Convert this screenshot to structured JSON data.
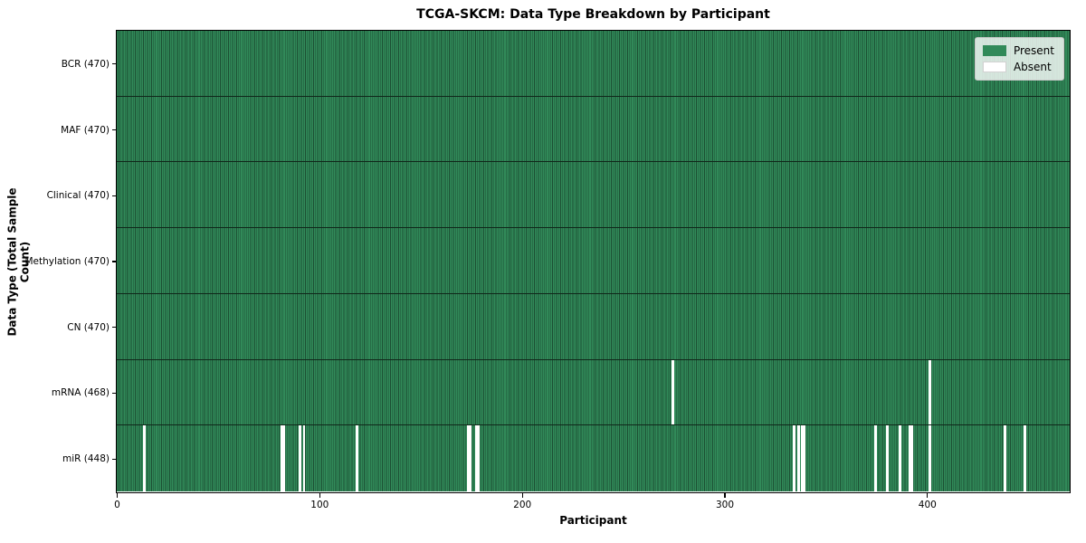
{
  "chart_data": {
    "type": "heatmap",
    "title": "TCGA-SKCM: Data Type Breakdown by Participant",
    "xlabel": "Participant",
    "ylabel": "Data Type (Total Sample Count)",
    "n_participants": 470,
    "x_ticks": [
      0,
      100,
      200,
      300,
      400
    ],
    "legend_position": "upper right",
    "grid": false,
    "legend": [
      {
        "label": "Present",
        "color": "#318a59"
      },
      {
        "label": "Absent",
        "color": "#ffffff"
      }
    ],
    "rows": [
      {
        "data_type": "BCR",
        "label": "BCR (470)",
        "present_count": 470,
        "absent_participants": []
      },
      {
        "data_type": "MAF",
        "label": "MAF (470)",
        "present_count": 470,
        "absent_participants": []
      },
      {
        "data_type": "Clinical",
        "label": "Clinical (470)",
        "present_count": 470,
        "absent_participants": []
      },
      {
        "data_type": "Methylation",
        "label": "Methylation (470)",
        "present_count": 470,
        "absent_participants": []
      },
      {
        "data_type": "CN",
        "label": "CN (470)",
        "present_count": 470,
        "absent_participants": []
      },
      {
        "data_type": "mRNA",
        "label": "mRNA (468)",
        "present_count": 468,
        "absent_participants": [
          274,
          401
        ]
      },
      {
        "data_type": "miR",
        "label": "miR (448)",
        "present_count": 448,
        "absent_participants": [
          13,
          81,
          82,
          90,
          92,
          118,
          173,
          174,
          177,
          178,
          334,
          336,
          338,
          339,
          374,
          380,
          386,
          391,
          392,
          401,
          438,
          448
        ]
      }
    ],
    "colors": {
      "present_fill": "#318a59",
      "cell_edge": "#1c4f33",
      "absent_fill": "#ffffff",
      "row_separator": "#10271a",
      "plot_border": "#000000",
      "background": "#ffffff"
    }
  }
}
